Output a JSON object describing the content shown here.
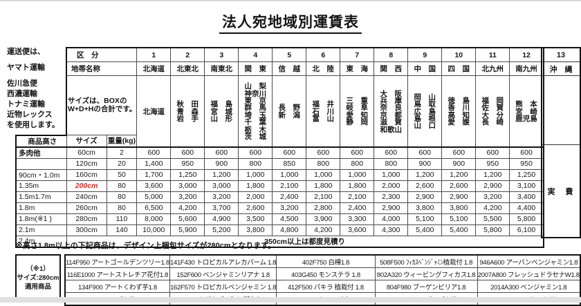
{
  "title": "法人宛地域別運賃表",
  "carrier_note_lines": [
    "運送便は、",
    "ヤマト運輸",
    "佐川急便",
    "西濃運輸",
    "トナミ運輸",
    "近物レックス",
    "を使用します。"
  ],
  "freight_table": {
    "kubun_header": "区　分",
    "zone_name_header": "地帯名称",
    "box_size_note_lines": [
      "サイズは、BOXの",
      "W+D+Hの合計です。"
    ],
    "product_height_header": "商品高さ",
    "size_header": "サイズ",
    "weight_header": "重量(kg)",
    "regions": [
      {
        "no": "1",
        "name": "北海道",
        "prefectures": [
          "北海道"
        ]
      },
      {
        "no": "2",
        "name": "北東北",
        "prefectures": [
          "秋　田",
          "青　森",
          "岩　手"
        ]
      },
      {
        "no": "3",
        "name": "南東北",
        "prefectures": [
          "福　島",
          "宮　城",
          "山　形"
        ]
      },
      {
        "no": "4",
        "name": "関　東",
        "prefectures": [
          "山　梨",
          "神奈川",
          "東　京",
          "群　馬",
          "埼　玉",
          "千　葉",
          "栃　木",
          "茨　城"
        ]
      },
      {
        "no": "5",
        "name": "信　越",
        "prefectures": [
          "長　野",
          "新　潟"
        ]
      },
      {
        "no": "6",
        "name": "北　陸",
        "prefectures": [
          "福　井",
          "石　川",
          "富　山"
        ]
      },
      {
        "no": "7",
        "name": "東　海",
        "prefectures": [
          "三　重",
          "岐　阜",
          "愛　知",
          "静　岡"
        ]
      },
      {
        "no": "8",
        "name": "関　西",
        "prefectures": [
          "大　阪",
          "兵　庫",
          "奈　良",
          "京　都",
          "滋　賀",
          "和歌山"
        ]
      },
      {
        "no": "9",
        "name": "中　国",
        "prefectures": [
          "岡　山",
          "鳥　取",
          "広　島",
          "島　根",
          "山　口"
        ]
      },
      {
        "no": "10",
        "name": "四　国",
        "prefectures": [
          "徳　島",
          "香　川",
          "高　知",
          "愛　媛"
        ]
      },
      {
        "no": "11",
        "name": "北九州",
        "prefectures": [
          "福　岡",
          "佐　賀",
          "大　分",
          "長　崎"
        ]
      },
      {
        "no": "12",
        "name": "南九州",
        "prefectures": [
          "熊　本",
          "宮　崎",
          "鹿児島"
        ]
      }
    ],
    "okinawa": {
      "no": "13",
      "name": "沖　縄",
      "fee_label": "実　費"
    },
    "rows": [
      {
        "label": "多肉他",
        "size": "60cm",
        "size_red": false,
        "weight": "2",
        "fares": [
          "600",
          "600",
          "600",
          "600",
          "600",
          "600",
          "600",
          "600",
          "600",
          "600",
          "600",
          "600"
        ]
      },
      {
        "label": "",
        "size": "120cm",
        "size_red": false,
        "weight": "20",
        "fares": [
          "1,400",
          "950",
          "900",
          "800",
          "850",
          "800",
          "800",
          "800",
          "900",
          "900",
          "950",
          "950"
        ]
      },
      {
        "label": "90cm・1.0m",
        "size": "160cm",
        "size_red": false,
        "weight": "50",
        "fares": [
          "1,700",
          "1,250",
          "1,200",
          "1,000",
          "1,000",
          "1,000",
          "1,000",
          "1,000",
          "1,200",
          "1,200",
          "1,200",
          "1,250"
        ]
      },
      {
        "label": "1.35m",
        "size": "200cm",
        "size_red": true,
        "weight": "80",
        "fares": [
          "3,600",
          "3,000",
          "3,000",
          "1,800",
          "2,100",
          "1,800",
          "1,800",
          "2,000",
          "2,600",
          "2,600",
          "2,900",
          "3,100"
        ]
      },
      {
        "label": "1.5m1.7m",
        "size": "240cm",
        "size_red": false,
        "weight": "80",
        "fares": [
          "5,000",
          "3,200",
          "3,200",
          "2,000",
          "2,400",
          "2,100",
          "2,100",
          "2,300",
          "2,900",
          "2,900",
          "3,200",
          "3,400"
        ]
      },
      {
        "label": "1.8m",
        "size": "260cm",
        "size_red": false,
        "weight": "80",
        "fares": [
          "6,500",
          "4,200",
          "3,700",
          "2,600",
          "3,200",
          "2,800",
          "2,400",
          "2,900",
          "3,800",
          "3,800",
          "4,200",
          "4,400"
        ]
      },
      {
        "label": "1.8m(※1 )",
        "size": "280cm",
        "size_red": false,
        "weight": "110",
        "fares": [
          "8,000",
          "5,600",
          "4,900",
          "3,500",
          "4,500",
          "3,900",
          "3,300",
          "4,000",
          "5,100",
          "5,100",
          "5,500",
          "5,800"
        ]
      },
      {
        "label": "2.1m",
        "size": "300cm",
        "size_red": false,
        "weight": "140",
        "fares": [
          "10,000",
          "5,900",
          "5,200",
          "3,800",
          "4,800",
          "4,200",
          "3,600",
          "4,300",
          "5,400",
          "5,400",
          "5,800",
          "6,100"
        ]
      }
    ],
    "last_row": {
      "label": "2.4m",
      "note": "350cm以上は都度見積り"
    }
  },
  "bottom": {
    "note": "※高さ1.8m以上の下記商品は、デザイン上梱包サイズが280cmとなります。",
    "label_box_lines": [
      "（※1）",
      "サイズ:280cm",
      "適用商品"
    ],
    "product_columns": [
      [
        "114F950 アートゴールデンツリー1.8",
        "116E1000 アートストレチア花付1.8",
        "134F900 アートくわず芋1.8",
        "140F700 パキラ 2.0"
      ],
      [
        "141F430 トロピカルアレカパーム 1.8",
        "152F600 ベンジャミンリアナ 1.8",
        "162F570 トロピカルベンジャミン 1.8",
        "167F570 ﾄﾛﾋﾟｶﾙﾍﾞﾝｼﾞｬﾐﾝ斑入り 1.8"
      ],
      [
        "402F750 白樺1.8",
        "403G450 モンステラ 1.8",
        "412F500 パキラ 植栽付 1.8",
        "501F570 シュロチク1.8"
      ],
      [
        "508F500 ﾌｨｶｽﾍﾞﾝｼﾞｬﾐﾝ植栽付 1.8",
        "802A320 ウィービングフィカス1.8",
        "804F980 ブーゲンビリア1.8",
        "941A600 アーバンパキラ1.8"
      ],
      [
        "946A600 アーバンベンジャミン1.8",
        "2007A800 フレッシュドラセナW1.8",
        "2014A300 ベンジャミン1.8",
        "2020A580 コーヒーツリー1.8"
      ]
    ]
  },
  "colors": {
    "red_size": "#d92b1f"
  }
}
